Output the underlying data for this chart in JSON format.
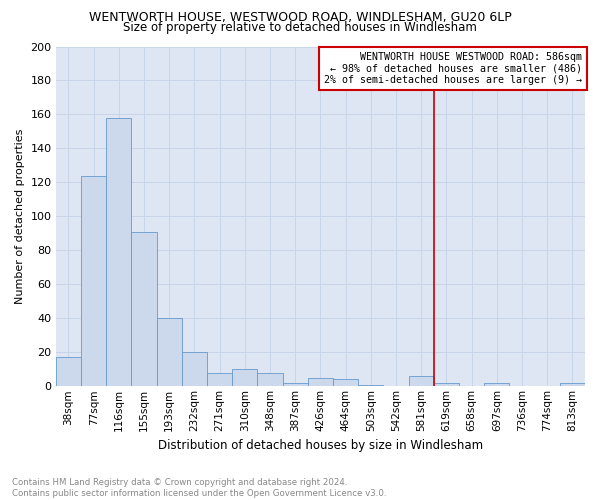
{
  "title": "WENTWORTH HOUSE, WESTWOOD ROAD, WINDLESHAM, GU20 6LP",
  "subtitle": "Size of property relative to detached houses in Windlesham",
  "xlabel": "Distribution of detached houses by size in Windlesham",
  "ylabel": "Number of detached properties",
  "footer": "Contains HM Land Registry data © Crown copyright and database right 2024.\nContains public sector information licensed under the Open Government Licence v3.0.",
  "bar_labels": [
    "38sqm",
    "77sqm",
    "116sqm",
    "155sqm",
    "193sqm",
    "232sqm",
    "271sqm",
    "310sqm",
    "348sqm",
    "387sqm",
    "426sqm",
    "464sqm",
    "503sqm",
    "542sqm",
    "581sqm",
    "619sqm",
    "658sqm",
    "697sqm",
    "736sqm",
    "774sqm",
    "813sqm"
  ],
  "bar_values": [
    17,
    124,
    158,
    91,
    40,
    20,
    8,
    10,
    8,
    2,
    5,
    4,
    1,
    0,
    6,
    2,
    0,
    2,
    0,
    0,
    2
  ],
  "bar_color": "#ccd9ec",
  "bar_edge_color": "#6699cc",
  "vline_x_index": 14,
  "vline_color": "#cc0000",
  "annotation_text": "WENTWORTH HOUSE WESTWOOD ROAD: 586sqm\n← 98% of detached houses are smaller (486)\n2% of semi-detached houses are larger (9) →",
  "annotation_box_color": "#cc0000",
  "ylim": [
    0,
    200
  ],
  "yticks": [
    0,
    20,
    40,
    60,
    80,
    100,
    120,
    140,
    160,
    180,
    200
  ],
  "grid_color": "#c8d4e8",
  "background_color": "#dde6f2"
}
